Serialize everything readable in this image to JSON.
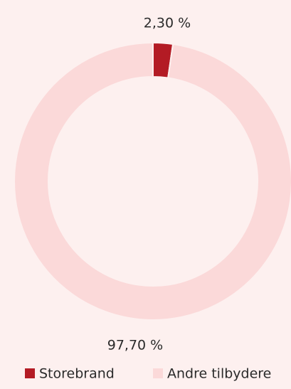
{
  "chart_data": {
    "type": "donut",
    "categories": [
      "Storebrand",
      "Andre tilbydere"
    ],
    "values": [
      2.3,
      97.7
    ],
    "value_labels": [
      "2,30 %",
      "97,70 %"
    ],
    "colors": [
      "#b31b24",
      "#fbd9d9"
    ],
    "legend": "bottom"
  }
}
